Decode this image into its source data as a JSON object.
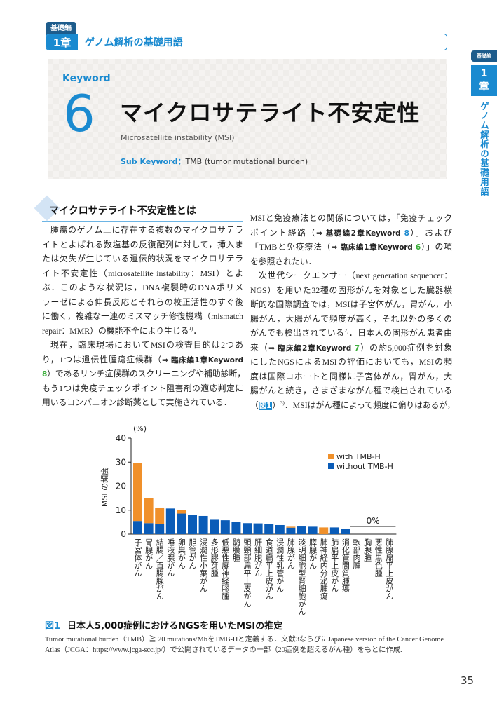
{
  "header": {
    "part": "基礎編",
    "chapter_num": "1章",
    "chapter_title": "ゲノム解析の基礎用語"
  },
  "keyword": {
    "label": "Keyword",
    "number": "6",
    "title": "マイクロサテライト不安定性",
    "english": "Microsatellite instability (MSI)",
    "sub_label": "Sub Keyword",
    "sub_sep": "：",
    "sub_value": "TMB (tumor mutational burden)"
  },
  "side_tab": {
    "part": "基礎編",
    "chapter_num": "1",
    "chapter_char": "章",
    "chapter_title": "ゲノム解析の基礎用語"
  },
  "section": {
    "title": "マイクロサテライト不安定性とは"
  },
  "left_lines": [
    {
      "i": 1,
      "s": [
        {
          "t": "腫瘍のゲノム上に存在する複数のマイクロサテラ"
        }
      ]
    },
    {
      "s": [
        {
          "t": "イトとよばれる数塩基の反復配列に対して，挿入ま"
        }
      ]
    },
    {
      "s": [
        {
          "t": "たは欠失が生じている遺伝的状況をマイクロサテラ"
        }
      ]
    },
    {
      "s": [
        {
          "t": "イト不安定性（microsatellite instability：MSI）とよ"
        }
      ]
    },
    {
      "s": [
        {
          "t": "ぶ．このような状況は，DNA複製時のDNAポリメ"
        }
      ]
    },
    {
      "s": [
        {
          "t": "ラーゼによる伸長反応とそれらの校正活性のすぐ後"
        }
      ]
    },
    {
      "s": [
        {
          "t": "に働く，複雑な一連のミスマッチ修復機構（mismatch"
        }
      ]
    },
    {
      "l": 1,
      "s": [
        {
          "t": "repair：MMR）の機能不全により生じる"
        },
        {
          "t": "1)",
          "k": "sup"
        },
        {
          "t": "．"
        }
      ]
    },
    {
      "i": 1,
      "s": [
        {
          "t": "現在，臨床現場においてMSIの検査目的は2つあ"
        }
      ]
    },
    {
      "s": [
        {
          "t": "り，1つは遺伝性腫瘍症候群（"
        },
        {
          "t": "⇒ 臨床編1章Keyword",
          "k": "ref"
        }
      ]
    },
    {
      "s": [
        {
          "t": "8",
          "k": "ref green"
        },
        {
          "t": "）であるリンチ症候群のスクリーニングや補助診断，"
        }
      ]
    },
    {
      "s": [
        {
          "t": "もう1つは免疫チェックポイント阻害剤の適応判定に"
        }
      ]
    },
    {
      "l": 1,
      "s": [
        {
          "t": "用いるコンパニオン診断薬として実施されている．"
        }
      ]
    }
  ],
  "right_lines": [
    {
      "s": [
        {
          "t": "MSIと免疫療法との関係については，「免疫チェック"
        }
      ]
    },
    {
      "s": [
        {
          "t": "ポイント経路（"
        },
        {
          "t": "⇒ 基礎編2章Keyword ",
          "k": "ref"
        },
        {
          "t": "8",
          "k": "ref blue"
        },
        {
          "t": "）」および"
        }
      ]
    },
    {
      "s": [
        {
          "t": "「TMBと免疫療法（"
        },
        {
          "t": "⇒ 臨床編1章Keyword ",
          "k": "ref"
        },
        {
          "t": "6",
          "k": "ref green"
        },
        {
          "t": "）」の項"
        }
      ]
    },
    {
      "l": 1,
      "s": [
        {
          "t": "を参照されたい．"
        }
      ]
    },
    {
      "i": 1,
      "s": [
        {
          "t": "次世代シークエンサー（next generation sequencer："
        }
      ]
    },
    {
      "s": [
        {
          "t": "NGS）を用いた32種の固形がんを対象とした臓器横"
        }
      ]
    },
    {
      "s": [
        {
          "t": "断的な国際調査では，MSIは子宮体がん，胃がん，小"
        }
      ]
    },
    {
      "s": [
        {
          "t": "腸がん，大腸がんで頻度が高く，それ以外の多くの"
        }
      ]
    },
    {
      "s": [
        {
          "t": "がんでも検出されている"
        },
        {
          "t": "2)",
          "k": "sup"
        },
        {
          "t": "．日本人の固形がん患者由"
        }
      ]
    },
    {
      "s": [
        {
          "t": "来（"
        },
        {
          "t": "⇒ 臨床編2章Keyword ",
          "k": "ref"
        },
        {
          "t": "7",
          "k": "ref green"
        },
        {
          "t": "）の約5,000症例を対象"
        }
      ]
    },
    {
      "s": [
        {
          "t": "にしたNGSによるMSIの評価においても，MSIの頻"
        }
      ]
    },
    {
      "s": [
        {
          "t": "度は国際コホートと同様に子宮体がん，胃がん，大"
        }
      ]
    },
    {
      "s": [
        {
          "t": "腸がんと続き，さまざまながん種で検出されている"
        }
      ]
    },
    {
      "s": [
        {
          "t": "（"
        },
        {
          "t": "図1",
          "k": "ref fig"
        },
        {
          "t": "）"
        },
        {
          "t": "3)",
          "k": "sup"
        },
        {
          "t": "．MSIはがん種によって頻度に偏りはあるが，"
        }
      ]
    }
  ],
  "chart_data": {
    "type": "bar",
    "stacked": true,
    "ylabel": "MSI の頻度",
    "yunit": "(%)",
    "ylim": [
      0,
      40
    ],
    "yticks": [
      "0",
      "10",
      "20",
      "30",
      "40"
    ],
    "categories": [
      "子宮体がん",
      "胃腺がん",
      "結腸／直腸腺がん",
      "唾液腺がん",
      "卵巣がん",
      "胆管がん",
      "浸潤性小葉がん",
      "多形膠芽腫",
      "低悪性度神経膠腫",
      "髄膜腫",
      "頭頸部扁平上皮がん",
      "肝細胞がん",
      "食道扁平上皮がん",
      "浸潤性乳管がん",
      "肺腺がん",
      "淡明細胞型腎細胞がん",
      "膵腺がん",
      "肺神経内分泌腫瘍",
      "肺扁平上皮がん",
      "消化管間質腫瘍",
      "軟部肉腫",
      "胸腺腫",
      "悪性黒色腫",
      "肺腺扁平上皮がん"
    ],
    "series": [
      {
        "name": "without TMB-H",
        "color": "#0a5cb8",
        "values": [
          5.5,
          4.6,
          4.1,
          10.7,
          8.6,
          8.0,
          7.6,
          6.0,
          5.8,
          5.0,
          4.6,
          4.5,
          4.3,
          3.8,
          2.7,
          3.2,
          3.1,
          0,
          2.8,
          2.3,
          0,
          0,
          0,
          0
        ]
      },
      {
        "name": "with TMB-H",
        "color": "#f0902a",
        "values": [
          24.0,
          10.4,
          7.0,
          0,
          1.5,
          0,
          0,
          0,
          0,
          0,
          0,
          0,
          0,
          0,
          0.4,
          0,
          0,
          2.8,
          0,
          0,
          0,
          0,
          0,
          0
        ]
      }
    ],
    "annotation": "0%",
    "legend": "top-right",
    "legend_order": [
      "with TMB-H",
      "without TMB-H"
    ],
    "grid": false
  },
  "figure": {
    "number": "図1",
    "title": "日本人5,000症例におけるNGSを用いたMSIの推定",
    "caption": "Tumor mutational burden（TMB）≧ 20 mutations/MbをTMB-Hと定義する．文献3ならびにJapanese version of the Cancer Genome Atlas（JCGA：https://www.jcga-scc.jp/）で公開されているデータの一部（20症例を超えるがん種）をもとに作成."
  },
  "page_number": "35",
  "colors": {
    "accent": "#1a8ad0",
    "dark_tab": "#1d5c8c",
    "ref_green": "#3aae3a",
    "keyword_bg": "#efedea"
  }
}
